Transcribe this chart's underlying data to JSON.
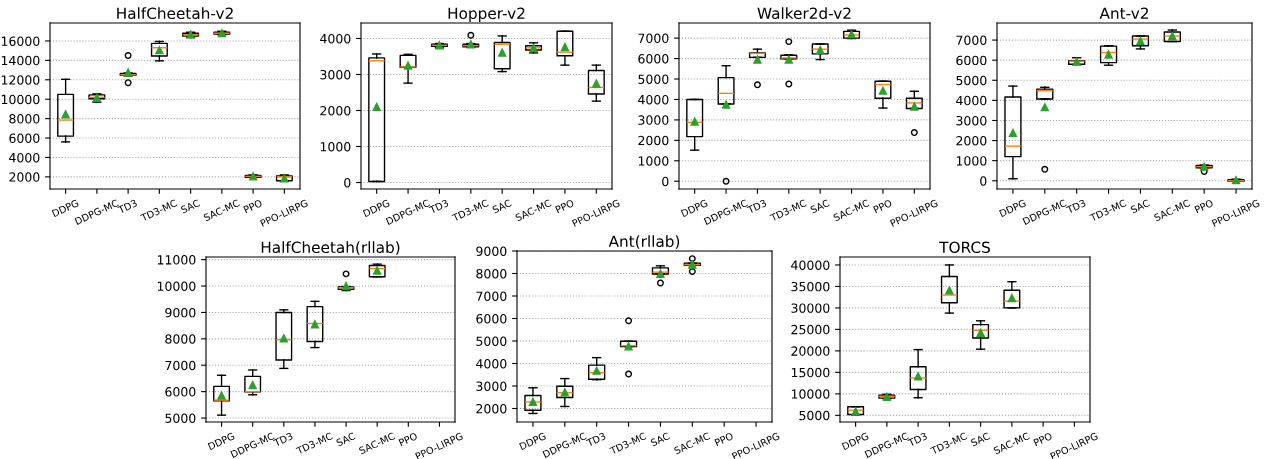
{
  "chart_data": [
    {
      "type": "box",
      "title": "HalfCheetah-v2",
      "categories": [
        "DDPG",
        "DDPG-MC",
        "TD3",
        "TD3-MC",
        "SAC",
        "SAC-MC",
        "PPO",
        "PPO-LIRPG"
      ],
      "ylim": [
        750,
        17850
      ],
      "yticks": [
        2000,
        4000,
        6000,
        8000,
        10000,
        12000,
        14000,
        16000
      ],
      "grid": "y",
      "boxes": [
        {
          "low": 5600,
          "q1": 6200,
          "median": 7850,
          "q3": 10500,
          "high": 12050,
          "mean": 8450
        },
        {
          "low": 9700,
          "q1": 10050,
          "median": 10200,
          "q3": 10450,
          "high": 10550,
          "mean": 10150
        },
        {
          "low": 12400,
          "q1": 12450,
          "median": 12500,
          "q3": 12650,
          "high": 12700,
          "mean": 12750,
          "outliers": [
            14500,
            11700
          ]
        },
        {
          "low": 13950,
          "q1": 14450,
          "median": 15300,
          "q3": 15750,
          "high": 15950,
          "mean": 15050
        },
        {
          "low": 16400,
          "q1": 16500,
          "median": 16650,
          "q3": 16800,
          "high": 16900,
          "mean": 16650
        },
        {
          "low": 16650,
          "q1": 16700,
          "median": 16800,
          "q3": 16900,
          "high": 17000,
          "mean": 16800
        },
        {
          "low": 1950,
          "q1": 1950,
          "median": 2050,
          "q3": 2150,
          "high": 2200,
          "mean": 2050
        },
        {
          "low": 1550,
          "q1": 1600,
          "median": 2000,
          "q3": 2100,
          "high": 2200,
          "mean": 1850
        }
      ]
    },
    {
      "type": "box",
      "title": "Hopper-v2",
      "categories": [
        "DDPG",
        "DDPG-MC",
        "TD3",
        "TD3-MC",
        "SAC",
        "SAC-MC",
        "PPO",
        "PPO-LIRPG"
      ],
      "ylim": [
        -180,
        4430
      ],
      "yticks": [
        0,
        1000,
        2000,
        3000,
        4000
      ],
      "grid": "y",
      "boxes": [
        {
          "low": 30,
          "q1": 30,
          "median": 3380,
          "q3": 3460,
          "high": 3570,
          "mean": 2100
        },
        {
          "low": 2760,
          "q1": 3200,
          "median": 3210,
          "q3": 3530,
          "high": 3560,
          "mean": 3250
        },
        {
          "low": 3740,
          "q1": 3780,
          "median": 3810,
          "q3": 3840,
          "high": 3860,
          "mean": 3810
        },
        {
          "low": 3760,
          "q1": 3770,
          "median": 3800,
          "q3": 3840,
          "high": 3860,
          "mean": 3840,
          "outliers": [
            4090
          ]
        },
        {
          "low": 3080,
          "q1": 3160,
          "median": 3840,
          "q3": 3890,
          "high": 4070,
          "mean": 3610
        },
        {
          "low": 3600,
          "q1": 3680,
          "median": 3740,
          "q3": 3800,
          "high": 3880,
          "mean": 3730
        },
        {
          "low": 3260,
          "q1": 3520,
          "median": 3620,
          "q3": 4200,
          "high": 4200,
          "mean": 3760
        },
        {
          "low": 2260,
          "q1": 2460,
          "median": 2640,
          "q3": 3110,
          "high": 3260,
          "mean": 2750
        }
      ]
    },
    {
      "type": "box",
      "title": "Walker2d-v2",
      "categories": [
        "DDPG",
        "DDPG-MC",
        "TD3",
        "TD3-MC",
        "SAC",
        "SAC-MC",
        "PPO",
        "PPO-LIRPG"
      ],
      "ylim": [
        -380,
        7740
      ],
      "yticks": [
        0,
        1000,
        2000,
        3000,
        4000,
        5000,
        6000,
        7000
      ],
      "grid": "y",
      "boxes": [
        {
          "low": 1520,
          "q1": 2180,
          "median": 2880,
          "q3": 4000,
          "high": 4000,
          "mean": 2920
        },
        {
          "low": 3780,
          "q1": 3780,
          "median": 4300,
          "q3": 5070,
          "high": 5650,
          "mean": 3750,
          "outliers": [
            0
          ]
        },
        {
          "low": 6060,
          "q1": 6060,
          "median": 6250,
          "q3": 6280,
          "high": 6460,
          "mean": 5950,
          "outliers": [
            4720
          ]
        },
        {
          "low": 5990,
          "q1": 5990,
          "median": 6030,
          "q3": 6160,
          "high": 6180,
          "mean": 5950,
          "outliers": [
            6830,
            4760
          ]
        },
        {
          "low": 5950,
          "q1": 6230,
          "median": 6460,
          "q3": 6710,
          "high": 6710,
          "mean": 6420
        },
        {
          "low": 6980,
          "q1": 7000,
          "median": 7150,
          "q3": 7330,
          "high": 7390,
          "mean": 7180
        },
        {
          "low": 3580,
          "q1": 4060,
          "median": 4730,
          "q3": 4890,
          "high": 4890,
          "mean": 4430
        },
        {
          "low": 3560,
          "q1": 3560,
          "median": 3830,
          "q3": 4060,
          "high": 4400,
          "mean": 3650,
          "outliers": [
            2380
          ]
        }
      ]
    },
    {
      "type": "box",
      "title": "Ant-v2",
      "categories": [
        "DDPG",
        "DDPG-MC",
        "TD3",
        "TD3-MC",
        "SAC",
        "SAC-MC",
        "PPO",
        "PPO-LIRPG"
      ],
      "ylim": [
        -410,
        7850
      ],
      "yticks": [
        0,
        1000,
        2000,
        3000,
        4000,
        5000,
        6000,
        7000
      ],
      "grid": "y",
      "boxes": [
        {
          "low": 100,
          "q1": 1200,
          "median": 1720,
          "q3": 4170,
          "high": 4710,
          "mean": 2380
        },
        {
          "low": 4070,
          "q1": 4070,
          "median": 4480,
          "q3": 4560,
          "high": 4650,
          "mean": 3660,
          "outliers": [
            570
          ]
        },
        {
          "low": 5780,
          "q1": 5800,
          "median": 5950,
          "q3": 5980,
          "high": 6120,
          "mean": 5930
        },
        {
          "low": 5750,
          "q1": 5880,
          "median": 6380,
          "q3": 6700,
          "high": 6720,
          "mean": 6280
        },
        {
          "low": 6560,
          "q1": 6720,
          "median": 7050,
          "q3": 7200,
          "high": 7200,
          "mean": 6950
        },
        {
          "low": 6930,
          "q1": 6930,
          "median": 7200,
          "q3": 7400,
          "high": 7500,
          "mean": 7200
        },
        {
          "low": 640,
          "q1": 650,
          "median": 700,
          "q3": 760,
          "high": 780,
          "mean": 700,
          "outliers": [
            460
          ]
        },
        {
          "low": -20,
          "q1": -20,
          "median": 0,
          "q3": 50,
          "high": 80,
          "mean": 30
        }
      ]
    },
    {
      "type": "box",
      "title": "HalfCheetah(rllab)",
      "categories": [
        "DDPG",
        "DDPG-MC",
        "TD3",
        "TD3-MC",
        "SAC",
        "SAC-MC",
        "PPO",
        "PPO-LIRPG"
      ],
      "ylim": [
        4850,
        11100
      ],
      "yticks": [
        5000,
        6000,
        7000,
        8000,
        9000,
        10000,
        11000
      ],
      "grid": "y",
      "boxes": [
        {
          "low": 5110,
          "q1": 5650,
          "median": 5680,
          "q3": 6200,
          "high": 6620,
          "mean": 5850
        },
        {
          "low": 5880,
          "q1": 5990,
          "median": 6000,
          "q3": 6580,
          "high": 6820,
          "mean": 6250
        },
        {
          "low": 6880,
          "q1": 7200,
          "median": 7970,
          "q3": 9000,
          "high": 9100,
          "mean": 8020
        },
        {
          "low": 7670,
          "q1": 7900,
          "median": 8580,
          "q3": 9220,
          "high": 9420,
          "mean": 8550
        },
        {
          "low": 9830,
          "q1": 9880,
          "median": 9930,
          "q3": 9970,
          "high": 9980,
          "mean": 10000,
          "outliers": [
            10460
          ]
        },
        {
          "low": 10350,
          "q1": 10350,
          "median": 10660,
          "q3": 10780,
          "high": 10830,
          "mean": 10590
        },
        null,
        null
      ]
    },
    {
      "type": "box",
      "title": "Ant(rllab)",
      "categories": [
        "DDPG",
        "DDPG-MC",
        "TD3",
        "TD3-MC",
        "SAC",
        "SAC-MC",
        "PPO",
        "PPO-LIRPG"
      ],
      "ylim": [
        1400,
        9000
      ],
      "yticks": [
        2000,
        3000,
        4000,
        5000,
        6000,
        7000,
        8000,
        9000
      ],
      "grid": "y",
      "boxes": [
        {
          "low": 1780,
          "q1": 1920,
          "median": 2290,
          "q3": 2580,
          "high": 2920,
          "mean": 2300
        },
        {
          "low": 2090,
          "q1": 2490,
          "median": 2700,
          "q3": 2990,
          "high": 3330,
          "mean": 2720
        },
        {
          "low": 3280,
          "q1": 3300,
          "median": 3590,
          "q3": 3930,
          "high": 4260,
          "mean": 3680
        },
        {
          "low": 4750,
          "q1": 4750,
          "median": 4790,
          "q3": 4990,
          "high": 4990,
          "mean": 4760,
          "outliers": [
            5900,
            3530
          ]
        },
        {
          "low": 7980,
          "q1": 7980,
          "median": 8060,
          "q3": 8250,
          "high": 8340,
          "mean": 7990,
          "outliers": [
            7580
          ]
        },
        {
          "low": 8360,
          "q1": 8360,
          "median": 8390,
          "q3": 8460,
          "high": 8460,
          "mean": 8400,
          "outliers": [
            8660,
            8090
          ]
        },
        null,
        null
      ]
    },
    {
      "type": "box",
      "title": "TORCS",
      "categories": [
        "DDPG",
        "DDPG-MC",
        "TD3",
        "TD3-MC",
        "SAC",
        "SAC-MC",
        "PPO",
        "PPO-LIRPG"
      ],
      "ylim": [
        3450,
        41850
      ],
      "yticks": [
        5000,
        10000,
        15000,
        20000,
        25000,
        30000,
        35000,
        40000
      ],
      "grid": "y",
      "boxes": [
        {
          "low": 5100,
          "q1": 5200,
          "median": 6200,
          "q3": 7000,
          "high": 7000,
          "mean": 5900
        },
        {
          "low": 8900,
          "q1": 9000,
          "median": 9400,
          "q3": 9700,
          "high": 9900,
          "mean": 9300
        },
        {
          "low": 9100,
          "q1": 11000,
          "median": 13700,
          "q3": 16300,
          "high": 20300,
          "mean": 14100
        },
        {
          "low": 28800,
          "q1": 31200,
          "median": 33000,
          "q3": 37300,
          "high": 40000,
          "mean": 34100
        },
        {
          "low": 20400,
          "q1": 23000,
          "median": 24800,
          "q3": 26100,
          "high": 27000,
          "mean": 24200
        },
        {
          "low": 30000,
          "q1": 30000,
          "median": 31600,
          "q3": 34100,
          "high": 36100,
          "mean": 32300
        },
        null,
        null
      ]
    }
  ]
}
